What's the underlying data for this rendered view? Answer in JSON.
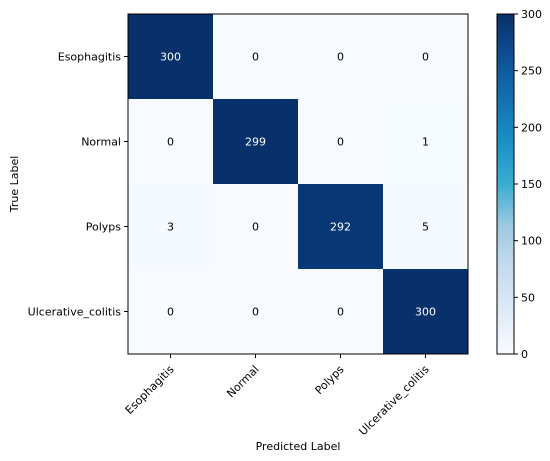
{
  "chart_data": {
    "type": "heatmap",
    "title": "",
    "xlabel": "Predicted Label",
    "ylabel": "True Label",
    "rows": [
      "Esophagitis",
      "Normal",
      "Polyps",
      "Ulcerative_colitis"
    ],
    "columns": [
      "Esophagitis",
      "Normal",
      "Polyps",
      "Ulcerative_colitis"
    ],
    "values": [
      [
        300,
        0,
        0,
        0
      ],
      [
        0,
        299,
        0,
        1
      ],
      [
        3,
        0,
        292,
        5
      ],
      [
        0,
        0,
        0,
        300
      ]
    ],
    "colormap": "Blues",
    "vmin": 0,
    "vmax": 300,
    "colorbar_ticks": [
      0,
      50,
      100,
      150,
      200,
      250,
      300
    ],
    "colors": {
      "low": "#f7fbff",
      "high": "#08306b",
      "text_dark": "#000000",
      "text_light": "#ffffff"
    }
  }
}
